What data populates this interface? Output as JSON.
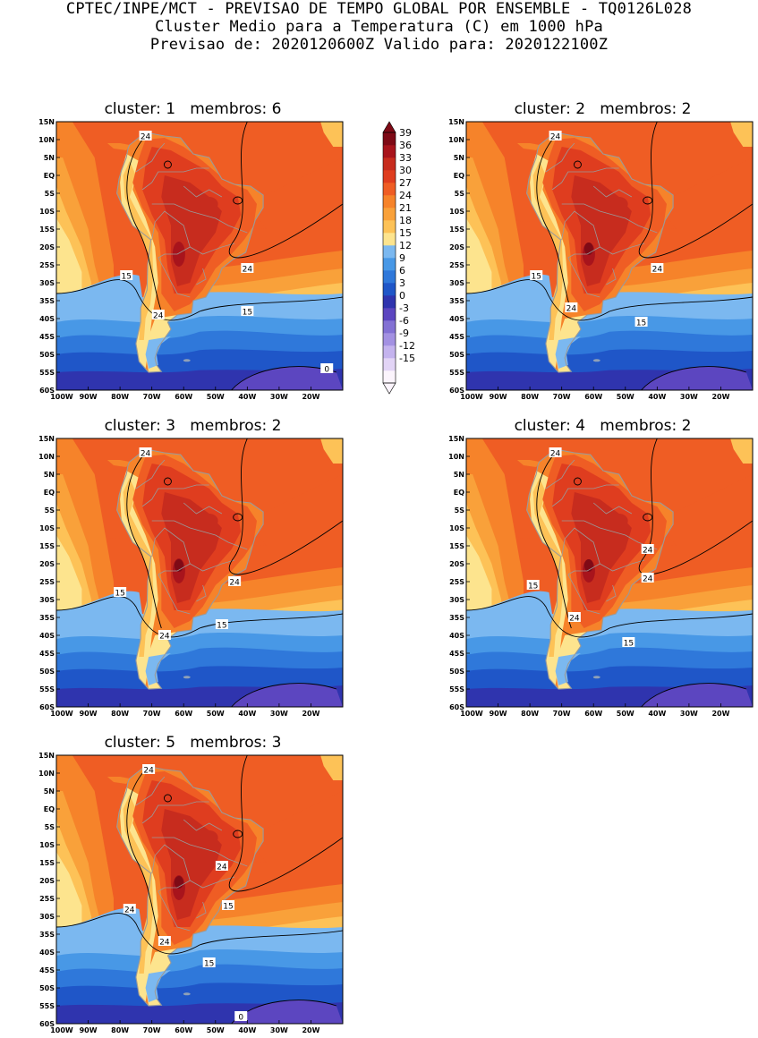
{
  "header": {
    "line1": "CPTEC/INPE/MCT - PREVISAO DE TEMPO GLOBAL POR ENSEMBLE - TQ0126L028",
    "line2": "Cluster Medio para a Temperatura (C) em 1000 hPa",
    "line3": "Previsao de: 2020120600Z   Valido para: 2020122100Z"
  },
  "panels": [
    {
      "title": "cluster: 1   membros: 6",
      "labels": [
        "24",
        "24",
        "15",
        "24",
        "15",
        "0"
      ]
    },
    {
      "title": "cluster: 2   membros: 2",
      "labels": [
        "24",
        "24",
        "15",
        "24",
        "15"
      ]
    },
    {
      "title": "cluster: 3   membros: 2",
      "labels": [
        "24",
        "24",
        "15",
        "24",
        "15"
      ]
    },
    {
      "title": "cluster: 4   membros: 2",
      "labels": [
        "24",
        "24",
        "15",
        "24",
        "24",
        "15"
      ]
    },
    {
      "title": "cluster: 5   membros: 3",
      "labels": [
        "24",
        "24",
        "24",
        "15",
        "24",
        "15",
        "0"
      ]
    }
  ],
  "axes": {
    "lat_ticks": [
      "15N",
      "10N",
      "5N",
      "EQ",
      "5S",
      "10S",
      "15S",
      "20S",
      "25S",
      "30S",
      "35S",
      "40S",
      "45S",
      "50S",
      "55S",
      "60S"
    ],
    "lon_ticks": [
      "100W",
      "90W",
      "80W",
      "70W",
      "60W",
      "50W",
      "40W",
      "30W",
      "20W"
    ]
  },
  "colorbar": {
    "levels": [
      "39",
      "36",
      "33",
      "30",
      "27",
      "24",
      "21",
      "18",
      "15",
      "12",
      "9",
      "6",
      "3",
      "0",
      "-3",
      "-6",
      "-9",
      "-12",
      "-15"
    ],
    "colors": [
      "#fbf4fc",
      "#e2d4f6",
      "#c4b3ee",
      "#a391e2",
      "#8371d4",
      "#5c46c0",
      "#2f34ae",
      "#1f56c8",
      "#2f78da",
      "#4898e6",
      "#7bb8f0",
      "#fde48e",
      "#fdc257",
      "#f9a13a",
      "#f6832a",
      "#ef5d24",
      "#df3d1f",
      "#c72c1e",
      "#a8141c",
      "#7e0a16"
    ]
  },
  "colors": {
    "land_outline": "#9a9a9a",
    "contour": "#000000"
  }
}
